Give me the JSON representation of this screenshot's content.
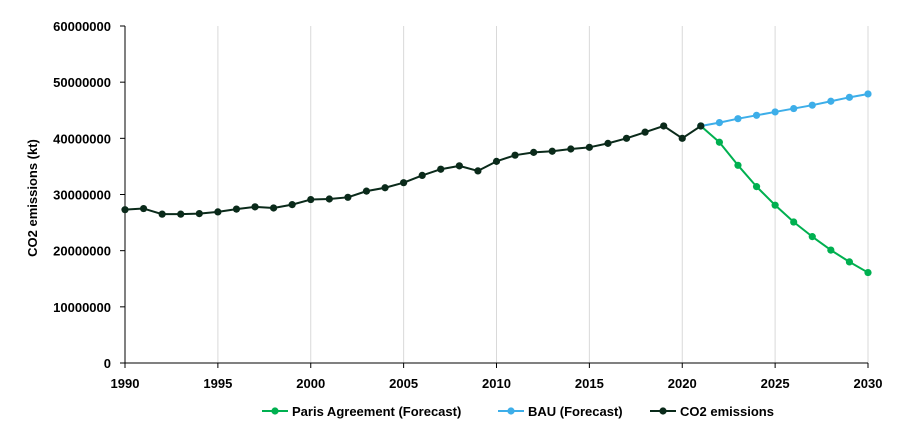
{
  "chart_data": {
    "type": "line",
    "title": "",
    "xlabel": "",
    "ylabel": "CO2 emissions (kt)",
    "xlim": [
      1990,
      2030
    ],
    "ylim": [
      0,
      60000000
    ],
    "x_ticks": [
      1990,
      1995,
      2000,
      2005,
      2010,
      2015,
      2020,
      2025,
      2030
    ],
    "y_ticks": [
      0,
      10000000,
      20000000,
      30000000,
      40000000,
      50000000,
      60000000
    ],
    "grid": "vertical",
    "legend_position": "bottom",
    "series": [
      {
        "name": "Paris Agreement (Forecast)",
        "color": "#00B050",
        "points": [
          [
            2021,
            42200000
          ],
          [
            2022,
            39300000
          ],
          [
            2023,
            35200000
          ],
          [
            2024,
            31400000
          ],
          [
            2025,
            28100000
          ],
          [
            2026,
            25100000
          ],
          [
            2027,
            22500000
          ],
          [
            2028,
            20100000
          ],
          [
            2029,
            18000000
          ],
          [
            2030,
            16100000
          ]
        ]
      },
      {
        "name": "BAU (Forecast)",
        "color": "#3DAEE9",
        "points": [
          [
            2021,
            42200000
          ],
          [
            2022,
            42800000
          ],
          [
            2023,
            43500000
          ],
          [
            2024,
            44100000
          ],
          [
            2025,
            44700000
          ],
          [
            2026,
            45300000
          ],
          [
            2027,
            45900000
          ],
          [
            2028,
            46600000
          ],
          [
            2029,
            47300000
          ],
          [
            2030,
            47900000
          ]
        ]
      },
      {
        "name": "CO2 emissions",
        "color": "#0A2A1A",
        "points": [
          [
            1990,
            27300000
          ],
          [
            1991,
            27500000
          ],
          [
            1992,
            26500000
          ],
          [
            1993,
            26500000
          ],
          [
            1994,
            26600000
          ],
          [
            1995,
            26900000
          ],
          [
            1996,
            27400000
          ],
          [
            1997,
            27800000
          ],
          [
            1998,
            27600000
          ],
          [
            1999,
            28200000
          ],
          [
            2000,
            29100000
          ],
          [
            2001,
            29200000
          ],
          [
            2002,
            29500000
          ],
          [
            2003,
            30600000
          ],
          [
            2004,
            31200000
          ],
          [
            2005,
            32100000
          ],
          [
            2006,
            33400000
          ],
          [
            2007,
            34500000
          ],
          [
            2008,
            35100000
          ],
          [
            2009,
            34200000
          ],
          [
            2010,
            35900000
          ],
          [
            2011,
            37000000
          ],
          [
            2012,
            37500000
          ],
          [
            2013,
            37700000
          ],
          [
            2014,
            38100000
          ],
          [
            2015,
            38400000
          ],
          [
            2016,
            39100000
          ],
          [
            2017,
            40000000
          ],
          [
            2018,
            41100000
          ],
          [
            2019,
            42200000
          ],
          [
            2020,
            40000000
          ],
          [
            2021,
            42200000
          ]
        ]
      }
    ]
  }
}
